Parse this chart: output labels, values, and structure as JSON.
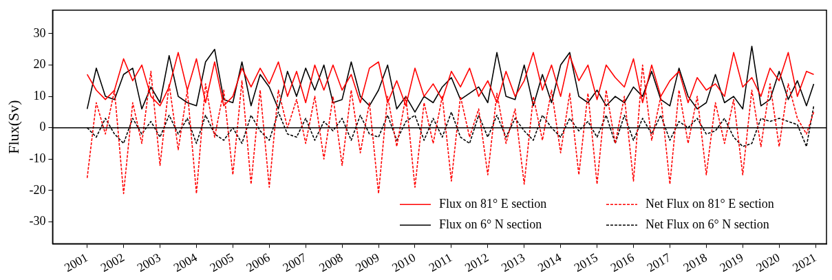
{
  "chart_data": {
    "type": "line",
    "ylabel": "Flux(Sv)",
    "x": [
      2001,
      2001.25,
      2001.5,
      2001.75,
      2002,
      2002.25,
      2002.5,
      2002.75,
      2003,
      2003.25,
      2003.5,
      2003.75,
      2004,
      2004.25,
      2004.5,
      2004.75,
      2005,
      2005.25,
      2005.5,
      2005.75,
      2006,
      2006.25,
      2006.5,
      2006.75,
      2007,
      2007.25,
      2007.5,
      2007.75,
      2008,
      2008.25,
      2008.5,
      2008.75,
      2009,
      2009.25,
      2009.5,
      2009.75,
      2010,
      2010.25,
      2010.5,
      2010.75,
      2011,
      2011.25,
      2011.5,
      2011.75,
      2012,
      2012.25,
      2012.5,
      2012.75,
      2013,
      2013.25,
      2013.5,
      2013.75,
      2014,
      2014.25,
      2014.5,
      2014.75,
      2015,
      2015.25,
      2015.5,
      2015.75,
      2016,
      2016.25,
      2016.5,
      2016.75,
      2017,
      2017.25,
      2017.5,
      2017.75,
      2018,
      2018.25,
      2018.5,
      2018.75,
      2019,
      2019.25,
      2019.5,
      2019.75,
      2020,
      2020.25,
      2020.5,
      2020.75,
      2020.95
    ],
    "series": [
      {
        "name": "Flux on 81° E section",
        "color": "#ff0000",
        "line_style": "solid",
        "values": [
          17,
          12,
          9,
          12,
          22,
          15,
          20,
          10,
          7,
          13,
          24,
          12,
          22,
          8,
          21,
          7,
          10,
          19,
          13,
          19,
          14,
          21,
          10,
          18,
          8,
          20,
          12,
          20,
          12,
          17,
          8,
          19,
          21,
          8,
          15,
          7,
          19,
          10,
          14,
          9,
          18,
          13,
          19,
          10,
          15,
          8,
          18,
          10,
          15,
          24,
          12,
          20,
          10,
          23,
          15,
          20,
          9,
          20,
          16,
          13,
          22,
          8,
          20,
          10,
          15,
          18,
          8,
          16,
          12,
          14,
          10,
          24,
          13,
          16,
          10,
          19,
          15,
          24,
          10,
          18,
          17
        ]
      },
      {
        "name": "Net Flux on 81° E section",
        "color": "#ff0000",
        "line_style": "dashed",
        "values": [
          -16,
          8,
          -2,
          12,
          -21,
          8,
          -5,
          18,
          -12,
          14,
          -7,
          12,
          -21,
          14,
          -3,
          12,
          -15,
          15,
          -18,
          12,
          -19,
          12,
          0,
          9,
          -5,
          10,
          -10,
          10,
          -12,
          12,
          -8,
          8,
          -21,
          10,
          -6,
          10,
          -19,
          8,
          -5,
          10,
          -17,
          10,
          -3,
          6,
          -15,
          11,
          -5,
          6,
          -18,
          10,
          -4,
          12,
          -8,
          11,
          -15,
          11,
          -18,
          12,
          -5,
          10,
          -17,
          20,
          -4,
          10,
          -18,
          12,
          -5,
          10,
          -15,
          8,
          -5,
          9,
          -15,
          12,
          -6,
          14,
          -6,
          14,
          3,
          -2,
          5
        ]
      },
      {
        "name": "Flux on 6° N section",
        "color": "#000000",
        "line_style": "solid",
        "values": [
          6,
          19,
          10,
          9,
          17,
          19,
          6,
          13,
          8,
          23,
          10,
          8,
          7,
          21,
          25,
          9,
          8,
          21,
          7,
          17,
          13,
          6,
          18,
          10,
          19,
          12,
          20,
          8,
          9,
          21,
          10,
          7,
          12,
          20,
          6,
          10,
          5,
          10,
          8,
          13,
          16,
          9,
          11,
          13,
          8,
          24,
          10,
          9,
          20,
          7,
          17,
          8,
          20,
          24,
          10,
          8,
          12,
          7,
          10,
          8,
          13,
          10,
          18,
          9,
          7,
          19,
          10,
          6,
          8,
          17,
          8,
          10,
          6,
          26,
          7,
          9,
          18,
          9,
          15,
          7,
          14
        ]
      },
      {
        "name": "Net Flux on 6° N section",
        "color": "#000000",
        "line_style": "dashed",
        "values": [
          0,
          -3,
          3,
          -2,
          -5,
          3,
          -2,
          2,
          -3,
          4,
          -2,
          3,
          -5,
          4,
          -2,
          -4,
          0,
          -5,
          4,
          -1,
          -4,
          5,
          -2,
          -3,
          3,
          -4,
          2,
          -1,
          3,
          -4,
          4,
          -2,
          -3,
          4,
          -4,
          2,
          4,
          -4,
          3,
          -3,
          5,
          -3,
          -5,
          4,
          -3,
          4,
          -3,
          3,
          -1,
          -4,
          4,
          0,
          -3,
          3,
          -1,
          2,
          -3,
          4,
          -5,
          4,
          -4,
          3,
          -2,
          4,
          -4,
          2,
          0,
          3,
          -2,
          -1,
          3,
          -3,
          -6,
          -5,
          3,
          2,
          3,
          2,
          1,
          -6,
          7
        ]
      }
    ],
    "xlim": [
      2000.05,
      2021.3
    ],
    "xticks": [
      2001,
      2002,
      2003,
      2004,
      2005,
      2006,
      2007,
      2008,
      2009,
      2010,
      2011,
      2012,
      2013,
      2014,
      2015,
      2016,
      2017,
      2018,
      2019,
      2020,
      2021
    ],
    "ylim": [
      -37,
      37.5
    ],
    "yticks": [
      -30,
      -20,
      -10,
      0,
      10,
      20,
      30
    ],
    "ref_lines": [
      {
        "axis": "y",
        "value": 0,
        "color": "#000000"
      }
    ],
    "grid": false,
    "legend": "bottom right",
    "marker": "none"
  }
}
